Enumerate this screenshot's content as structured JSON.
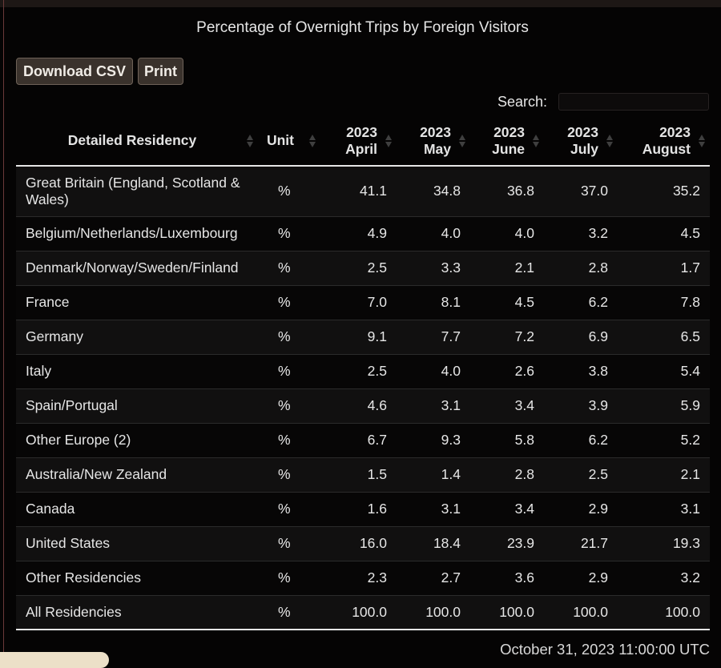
{
  "title": "Percentage of Overnight Trips by Foreign Visitors",
  "toolbar": {
    "download_label": "Download CSV",
    "print_label": "Print"
  },
  "search": {
    "label": "Search:",
    "value": ""
  },
  "table": {
    "columns": [
      {
        "line1": "Detailed Residency",
        "line2": ""
      },
      {
        "line1": "Unit",
        "line2": ""
      },
      {
        "line1": "2023",
        "line2": "April"
      },
      {
        "line1": "2023",
        "line2": "May"
      },
      {
        "line1": "2023",
        "line2": "June"
      },
      {
        "line1": "2023",
        "line2": "July"
      },
      {
        "line1": "2023",
        "line2": "August"
      }
    ],
    "rows": [
      [
        "Great Britain (England, Scotland & Wales)",
        "%",
        "41.1",
        "34.8",
        "36.8",
        "37.0",
        "35.2"
      ],
      [
        "Belgium/Netherlands/Luxembourg",
        "%",
        "4.9",
        "4.0",
        "4.0",
        "3.2",
        "4.5"
      ],
      [
        "Denmark/Norway/Sweden/Finland",
        "%",
        "2.5",
        "3.3",
        "2.1",
        "2.8",
        "1.7"
      ],
      [
        "France",
        "%",
        "7.0",
        "8.1",
        "4.5",
        "6.2",
        "7.8"
      ],
      [
        "Germany",
        "%",
        "9.1",
        "7.7",
        "7.2",
        "6.9",
        "6.5"
      ],
      [
        "Italy",
        "%",
        "2.5",
        "4.0",
        "2.6",
        "3.8",
        "5.4"
      ],
      [
        "Spain/Portugal",
        "%",
        "4.6",
        "3.1",
        "3.4",
        "3.9",
        "5.9"
      ],
      [
        "Other Europe (2)",
        "%",
        "6.7",
        "9.3",
        "5.8",
        "6.2",
        "5.2"
      ],
      [
        "Australia/New Zealand",
        "%",
        "1.5",
        "1.4",
        "2.8",
        "2.5",
        "2.1"
      ],
      [
        "Canada",
        "%",
        "1.6",
        "3.1",
        "3.4",
        "2.9",
        "3.1"
      ],
      [
        "United States",
        "%",
        "16.0",
        "18.4",
        "23.9",
        "21.7",
        "19.3"
      ],
      [
        "Other Residencies",
        "%",
        "2.3",
        "2.7",
        "3.6",
        "2.9",
        "3.2"
      ],
      [
        "All Residencies",
        "%",
        "100.0",
        "100.0",
        "100.0",
        "100.0",
        "100.0"
      ]
    ]
  },
  "timestamp": "October 31, 2023 11:00:00 UTC",
  "colors": {
    "background": "#050404",
    "button": "#3a322c",
    "row_alt": "#111010"
  },
  "icons": [
    "sort-icon"
  ]
}
